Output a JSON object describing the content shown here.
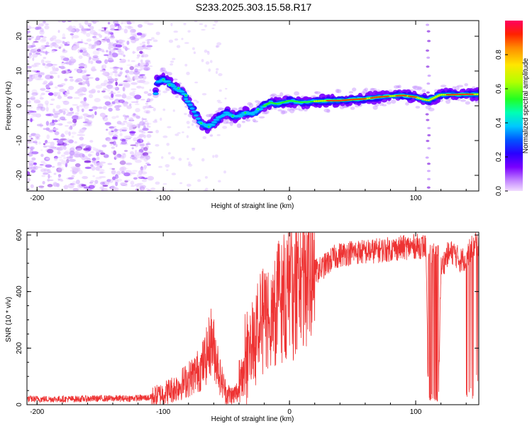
{
  "page": {
    "title": "S233.2025.303.15.58.R17"
  },
  "colors": {
    "signal_line": "#ee3333",
    "noise_purple": "#8a2be2",
    "frame": "#000000"
  },
  "chart_data": [
    {
      "id": "spectrogram",
      "type": "heatmap",
      "title": "S233.2025.303.15.58.R17",
      "xlabel": "Height of straight line (km)",
      "ylabel": "Frequency (Hz)",
      "xlim": [
        -208,
        150
      ],
      "ylim": [
        -24.5,
        24.5
      ],
      "xticks": [
        -200,
        -100,
        0,
        100
      ],
      "yticks": [
        -20,
        -10,
        0,
        10,
        20
      ],
      "grid": false,
      "ridge": {
        "description_points_x": [
          -105,
          -100,
          -95,
          -90,
          -85,
          -80,
          -75,
          -70,
          -65,
          -60,
          -55,
          -50,
          -45,
          -40,
          -35,
          -30,
          -25,
          -20,
          -15,
          -10,
          -5,
          0,
          10,
          20,
          30,
          40,
          50,
          60,
          70,
          80,
          90,
          100,
          110,
          120,
          130,
          140,
          150
        ],
        "freq_hz": [
          7,
          7.5,
          6.5,
          5,
          4,
          1,
          -2,
          -5,
          -6,
          -5,
          -3,
          -2,
          -3,
          -3,
          -2,
          -2.5,
          -1.5,
          0,
          1,
          0.5,
          1,
          1.5,
          1,
          1.3,
          1.5,
          1.5,
          1.8,
          2,
          2.5,
          2.8,
          3,
          2.5,
          1.5,
          3.2,
          3.2,
          3.3,
          3.3
        ]
      },
      "noise_region_x": [
        -208,
        -110
      ],
      "colorbar": {
        "label": "Normalized spectral amplitude",
        "range": [
          0,
          1
        ],
        "ticks": [
          "0.0",
          "0.2",
          "0.4",
          "0.6",
          "0.8"
        ],
        "tick_values": [
          0,
          0.2,
          0.4,
          0.6,
          0.8
        ]
      }
    },
    {
      "id": "snr",
      "type": "line",
      "xlabel": "Height of straight line (km)",
      "ylabel": "SNR (10 * v/v)",
      "xlim": [
        -208,
        150
      ],
      "ylim": [
        0,
        610
      ],
      "xticks": [
        -200,
        -100,
        0,
        100
      ],
      "yticks": [
        0,
        200,
        400,
        600
      ],
      "grid": false,
      "series": [
        {
          "name": "SNR",
          "x": [
            -208,
            -190,
            -170,
            -150,
            -130,
            -110,
            -100,
            -90,
            -80,
            -70,
            -65,
            -62,
            -60,
            -57,
            -55,
            -50,
            -45,
            -40,
            -35,
            -30,
            -25,
            -20,
            -15,
            -10,
            -5,
            0,
            5,
            10,
            15,
            20,
            25,
            30,
            35,
            40,
            50,
            60,
            70,
            80,
            90,
            100,
            108,
            110,
            112,
            115,
            118,
            120,
            125,
            130,
            135,
            140,
            145,
            150
          ],
          "y": [
            20,
            20,
            20,
            22,
            22,
            25,
            40,
            60,
            90,
            130,
            180,
            230,
            200,
            150,
            100,
            40,
            30,
            50,
            150,
            230,
            270,
            300,
            320,
            360,
            390,
            400,
            420,
            440,
            460,
            470,
            480,
            500,
            520,
            530,
            540,
            540,
            545,
            550,
            555,
            560,
            560,
            30,
            30,
            30,
            30,
            480,
            530,
            540,
            510,
            520,
            560,
            570
          ]
        }
      ]
    }
  ]
}
